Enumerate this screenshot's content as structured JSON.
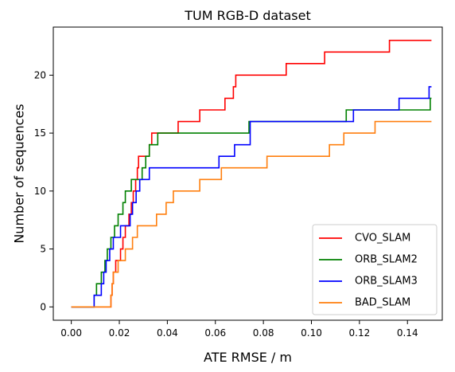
{
  "chart_data": {
    "type": "line",
    "step": "post",
    "title": "TUM RGB-D dataset",
    "xlabel": "ATE RMSE / m",
    "ylabel": "Number of sequences",
    "xlim": [
      -0.0075,
      0.1545
    ],
    "ylim": [
      -1.15,
      24.15
    ],
    "xticks": [
      0.0,
      0.02,
      0.04,
      0.06,
      0.08,
      0.1,
      0.12,
      0.14
    ],
    "xtick_labels": [
      "0.00",
      "0.02",
      "0.04",
      "0.06",
      "0.08",
      "0.10",
      "0.12",
      "0.14"
    ],
    "yticks": [
      0,
      5,
      10,
      15,
      20
    ],
    "ytick_labels": [
      "0",
      "5",
      "10",
      "15",
      "20"
    ],
    "grid": false,
    "legend": "lower-right",
    "series": [
      {
        "name": "CVO_SLAM",
        "color": "#ff0000",
        "x": [
          0.0,
          0.0155,
          0.0165,
          0.017,
          0.0175,
          0.0185,
          0.0205,
          0.0215,
          0.0225,
          0.024,
          0.025,
          0.0258,
          0.0268,
          0.0275,
          0.028,
          0.0325,
          0.0335,
          0.0445,
          0.0535,
          0.064,
          0.0675,
          0.0685,
          0.0895,
          0.1055,
          0.1325,
          0.15
        ],
        "y": [
          0,
          0,
          1,
          2,
          3,
          4,
          5,
          6,
          7,
          8,
          9,
          10,
          11,
          12,
          13,
          14,
          15,
          16,
          17,
          18,
          19,
          20,
          21,
          22,
          23,
          23
        ]
      },
      {
        "name": "ORB_SLAM2",
        "color": "#008000",
        "x": [
          0.0,
          0.0065,
          0.0095,
          0.0105,
          0.0125,
          0.014,
          0.015,
          0.0165,
          0.018,
          0.0195,
          0.0215,
          0.0225,
          0.025,
          0.0265,
          0.0275,
          0.0295,
          0.031,
          0.0325,
          0.036,
          0.0375,
          0.074,
          0.1145,
          0.1495,
          0.15
        ],
        "y": [
          0,
          0,
          1,
          2,
          3,
          4,
          5,
          6,
          7,
          8,
          9,
          10,
          11,
          11,
          11,
          12,
          13,
          14,
          15,
          15,
          16,
          17,
          18,
          18
        ]
      },
      {
        "name": "ORB_SLAM3",
        "color": "#0000ff",
        "x": [
          0.0,
          0.0065,
          0.0095,
          0.0125,
          0.0135,
          0.0145,
          0.016,
          0.0175,
          0.0205,
          0.0245,
          0.0255,
          0.027,
          0.0285,
          0.0298,
          0.0312,
          0.0325,
          0.0335,
          0.0615,
          0.068,
          0.0745,
          0.1175,
          0.1365,
          0.149,
          0.15
        ],
        "y": [
          0,
          0,
          1,
          2,
          3,
          4,
          5,
          6,
          7,
          8,
          9,
          10,
          11,
          11,
          11,
          12,
          12,
          13,
          14,
          16,
          17,
          18,
          19,
          19
        ]
      },
      {
        "name": "BAD_SLAM",
        "color": "#ff7f0e",
        "x": [
          0.0,
          0.0105,
          0.0165,
          0.017,
          0.0175,
          0.0195,
          0.0225,
          0.0255,
          0.0275,
          0.0295,
          0.0315,
          0.0355,
          0.0365,
          0.0375,
          0.0395,
          0.0425,
          0.0535,
          0.0625,
          0.0815,
          0.1075,
          0.1135,
          0.1265,
          0.15
        ],
        "y": [
          0,
          0,
          1,
          2,
          3,
          4,
          5,
          6,
          7,
          7,
          7,
          8,
          8,
          8,
          9,
          10,
          11,
          12,
          13,
          14,
          15,
          16,
          16
        ]
      }
    ]
  }
}
